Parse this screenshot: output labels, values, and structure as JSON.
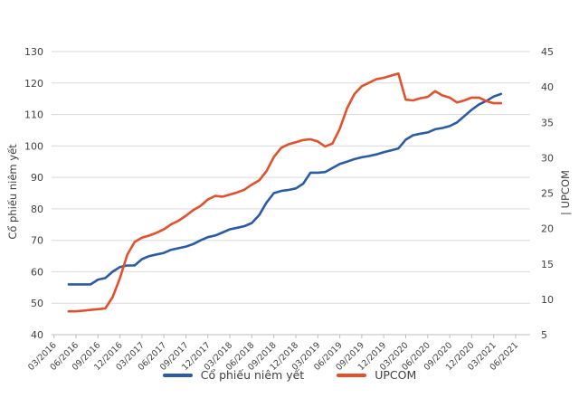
{
  "chart_data": {
    "type": "line",
    "title": "",
    "grid": "horizontal",
    "legend_position": "bottom",
    "x_tick_labels": [
      "03/2016",
      "06/2016",
      "09/2016",
      "12/2016",
      "03/2017",
      "06/2017",
      "09/2017",
      "12/2017",
      "03/2018",
      "06/2018",
      "09/2018",
      "12/2018",
      "03/2019",
      "06/2019",
      "09/2019",
      "12/2019",
      "03/2020",
      "06/2020",
      "09/2020",
      "12/2020",
      "03/2021",
      "06/2021"
    ],
    "months": [
      "05/2016",
      "06/2016",
      "07/2016",
      "08/2016",
      "09/2016",
      "10/2016",
      "11/2016",
      "12/2016",
      "01/2017",
      "02/2017",
      "03/2017",
      "04/2017",
      "05/2017",
      "06/2017",
      "07/2017",
      "08/2017",
      "09/2017",
      "10/2017",
      "11/2017",
      "12/2017",
      "01/2018",
      "02/2018",
      "03/2018",
      "04/2018",
      "05/2018",
      "06/2018",
      "07/2018",
      "08/2018",
      "09/2018",
      "10/2018",
      "11/2018",
      "12/2018",
      "01/2019",
      "02/2019",
      "03/2019",
      "04/2019",
      "05/2019",
      "06/2019",
      "07/2019",
      "08/2019",
      "09/2019",
      "10/2019",
      "11/2019",
      "12/2019",
      "01/2020",
      "02/2020",
      "03/2020",
      "04/2020",
      "05/2020",
      "06/2020",
      "07/2020",
      "08/2020",
      "09/2020",
      "10/2020",
      "11/2020",
      "12/2020",
      "01/2021",
      "02/2021",
      "03/2021",
      "04/2021"
    ],
    "left_axis": {
      "label": "Cổ phiếu niêm yết",
      "min": 40,
      "max": 130,
      "step": 10,
      "ticks": [
        40,
        50,
        60,
        70,
        80,
        90,
        100,
        110,
        120,
        130
      ]
    },
    "right_axis": {
      "label": "| UPCOM",
      "min": 5,
      "max": 45,
      "step": 5,
      "ticks": [
        5,
        10,
        15,
        20,
        25,
        30,
        35,
        40,
        45
      ]
    },
    "series": [
      {
        "name": "Cổ phiếu niêm yết",
        "axis": "left",
        "color": "#2B5BA8",
        "values": [
          56,
          56,
          56,
          56,
          57.5,
          58,
          60,
          61.5,
          62,
          62,
          64,
          65,
          65.5,
          66,
          67,
          67.5,
          68,
          68.8,
          70,
          71,
          71.5,
          72.5,
          73.5,
          74,
          74.5,
          75.5,
          78,
          82,
          85,
          85.7,
          86,
          86.5,
          88,
          91.5,
          91.5,
          91.7,
          93,
          94.3,
          95,
          95.8,
          96.4,
          96.8,
          97.3,
          98,
          98.6,
          99.2,
          102,
          103.4,
          103.9,
          104.3,
          105.3,
          105.7,
          106.3,
          107.5,
          109.5,
          111.5,
          113.2,
          114.3,
          115.7,
          116.5
        ]
      },
      {
        "name": "UPCOM",
        "axis": "right",
        "color": "#E2512B",
        "values": [
          8.3,
          8.3,
          8.4,
          8.5,
          8.6,
          8.7,
          10.3,
          13,
          16.3,
          18.1,
          18.7,
          19,
          19.4,
          19.9,
          20.6,
          21.1,
          21.8,
          22.6,
          23.2,
          24.1,
          24.6,
          24.5,
          24.8,
          25.1,
          25.5,
          26.2,
          26.8,
          28.1,
          30.1,
          31.4,
          31.9,
          32.2,
          32.5,
          32.6,
          32.3,
          31.6,
          32,
          34.1,
          37,
          39,
          40.1,
          40.6,
          41.1,
          41.3,
          41.6,
          41.9,
          38.2,
          38.1,
          38.4,
          38.6,
          39.4,
          38.8,
          38.5,
          37.8,
          38.1,
          38.5,
          38.5,
          38,
          37.7,
          37.7
        ]
      }
    ]
  },
  "colors": {
    "gridline": "#D9D9D9",
    "axis_line": "#BFBFBF",
    "tick_text": "#404040",
    "series_blue": "#2B5BA8",
    "series_orange": "#E2512B",
    "background": "#FFFFFF"
  }
}
